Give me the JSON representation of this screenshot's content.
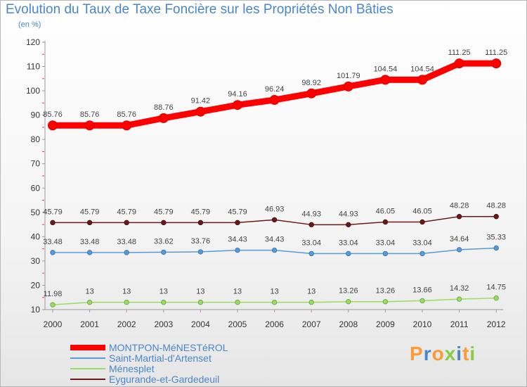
{
  "header": {
    "title": "Evolution du Taux de Taxe Foncière sur les Propriétés Non Bâties",
    "unit": "(en %)"
  },
  "logo": {
    "text": "Proxiti",
    "letters": [
      "P",
      "r",
      "o",
      "x",
      "i",
      "t",
      "i"
    ]
  },
  "colors": {
    "montpon": "#ff0000",
    "saint_martial": "#5b9bd5",
    "menesplet": "#99dd66",
    "eygurande": "#6b1a1a",
    "axis_text": "#333333",
    "title": "#4a86c8"
  },
  "chart_data": {
    "type": "line",
    "title": "Evolution du Taux de Taxe Foncière sur les Propriétés Non Bâties",
    "ylabel": "(en %)",
    "xlabel": "",
    "ylim": [
      10,
      120
    ],
    "yticks": [
      "10",
      "20",
      "30",
      "40",
      "50",
      "60",
      "70",
      "80",
      "90",
      "100",
      "110",
      "120"
    ],
    "x": [
      "2000",
      "2001",
      "2002",
      "2003",
      "2004",
      "2005",
      "2006",
      "2007",
      "2008",
      "2009",
      "2010",
      "2011",
      "2012"
    ],
    "grid": false,
    "legend_position": "bottom-left",
    "series": [
      {
        "name": "MONTPON-MéNESTéROL",
        "color": "#ff0000",
        "values": [
          85.76,
          85.76,
          85.76,
          88.76,
          91.42,
          94.16,
          96.24,
          98.92,
          101.79,
          104.54,
          104.54,
          111.25,
          111.25
        ],
        "labels": [
          "85.76",
          "85.76",
          "85.76",
          "88.76",
          "91.42",
          "94.16",
          "96.24",
          "98.92",
          "101.79",
          "104.54",
          "104.54",
          "111.25",
          "111.25"
        ]
      },
      {
        "name": "Saint-Martial-d'Artenset",
        "color": "#5b9bd5",
        "values": [
          33.48,
          33.48,
          33.48,
          33.62,
          33.76,
          34.43,
          34.43,
          33.04,
          33.04,
          33.04,
          33.04,
          34.64,
          35.33
        ],
        "labels": [
          "33.48",
          "33.48",
          "33.48",
          "33.62",
          "33.76",
          "34.43",
          "34.43",
          "33.04",
          "33.04",
          "33.04",
          "33.04",
          "34.64",
          "35.33"
        ]
      },
      {
        "name": "Ménesplet",
        "color": "#99dd66",
        "values": [
          11.98,
          13,
          13,
          13,
          13,
          13,
          13,
          13,
          13.26,
          13.26,
          13.66,
          14.32,
          14.75
        ],
        "labels": [
          "11.98",
          "13",
          "13",
          "13",
          "13",
          "13",
          "13",
          "13",
          "13.26",
          "13.26",
          "13.66",
          "14.32",
          "14.75"
        ]
      },
      {
        "name": "Eygurande-et-Gardedeuil",
        "color": "#6b1a1a",
        "values": [
          45.79,
          45.79,
          45.79,
          45.79,
          45.79,
          45.79,
          46.93,
          44.93,
          44.93,
          46.05,
          46.05,
          48.28,
          48.28
        ],
        "labels": [
          "45.79",
          "45.79",
          "45.79",
          "45.79",
          "45.79",
          "45.79",
          "46.93",
          "44.93",
          "44.93",
          "46.05",
          "46.05",
          "48.28",
          "48.28"
        ]
      }
    ]
  }
}
